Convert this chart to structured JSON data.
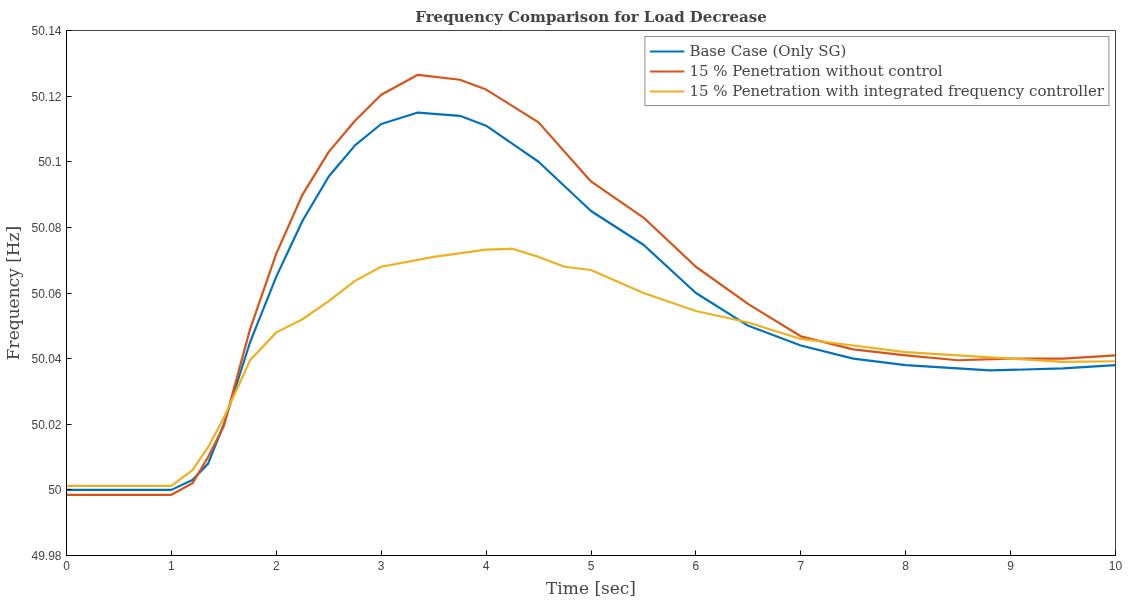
{
  "chart_data": {
    "type": "line",
    "title": "Frequency Comparison for Load Decrease",
    "xlabel": "Time [sec]",
    "ylabel": "Frequency [Hz]",
    "xlim": [
      0,
      10
    ],
    "xticks": [
      0,
      1,
      2,
      3,
      4,
      5,
      6,
      7,
      8,
      9,
      10
    ],
    "ylim": [
      49.98,
      50.14
    ],
    "yticks": [
      49.98,
      50,
      50.02,
      50.04,
      50.06,
      50.08,
      50.1,
      50.12,
      50.14
    ],
    "grid": false,
    "legend": "top right",
    "marker": "none",
    "line_style": "solid",
    "series": [
      {
        "name": "Base Case (Only SG)",
        "color": "#0072bd",
        "x": [
          0,
          0.5,
          1.0,
          1.2,
          1.35,
          1.5,
          1.75,
          2.0,
          2.25,
          2.5,
          2.75,
          3.0,
          3.35,
          3.75,
          4.0,
          4.5,
          5.0,
          5.5,
          6.0,
          6.5,
          7.0,
          7.5,
          8.0,
          8.8,
          9.5,
          10
        ],
        "values": [
          50.0,
          50.0,
          50.0,
          50.003,
          50.008,
          50.02,
          50.045,
          50.065,
          50.082,
          50.0955,
          50.105,
          50.1115,
          50.115,
          50.114,
          50.111,
          50.1,
          50.085,
          50.0747,
          50.06,
          50.05,
          50.044,
          50.04,
          50.038,
          50.0364,
          50.037,
          50.038
        ]
      },
      {
        "name": "15 % Penetration without control",
        "color": "#d95319",
        "x": [
          0,
          0.5,
          1.0,
          1.2,
          1.35,
          1.5,
          1.75,
          2.0,
          2.25,
          2.5,
          2.75,
          3.0,
          3.35,
          3.75,
          4.0,
          4.5,
          5.0,
          5.5,
          6.0,
          6.5,
          7.0,
          7.5,
          8.0,
          8.5,
          9.0,
          9.5,
          10
        ],
        "values": [
          49.9985,
          49.9985,
          49.9985,
          50.002,
          50.01,
          50.0195,
          50.049,
          50.072,
          50.09,
          50.103,
          50.1125,
          50.1204,
          50.1265,
          50.125,
          50.122,
          50.112,
          50.094,
          50.083,
          50.068,
          50.0566,
          50.0468,
          50.0428,
          50.041,
          50.0395,
          50.04,
          50.04,
          50.041
        ]
      },
      {
        "name": "15 % Penetration with integrated frequency controller",
        "color": "#edb120",
        "x": [
          0,
          0.5,
          1.0,
          1.2,
          1.35,
          1.5,
          1.75,
          2.0,
          2.25,
          2.5,
          2.75,
          3.0,
          3.5,
          4.0,
          4.25,
          4.5,
          4.75,
          5.0,
          5.5,
          6.0,
          6.5,
          7.0,
          7.5,
          8.0,
          8.5,
          9.0,
          9.5,
          10
        ],
        "values": [
          50.0012,
          50.0012,
          50.0012,
          50.006,
          50.013,
          50.022,
          50.0395,
          50.048,
          50.052,
          50.0575,
          50.0637,
          50.068,
          50.071,
          50.0732,
          50.0735,
          50.071,
          50.068,
          50.067,
          50.06,
          50.0545,
          50.051,
          50.046,
          50.044,
          50.042,
          50.041,
          50.04,
          50.039,
          50.0392
        ]
      }
    ]
  }
}
